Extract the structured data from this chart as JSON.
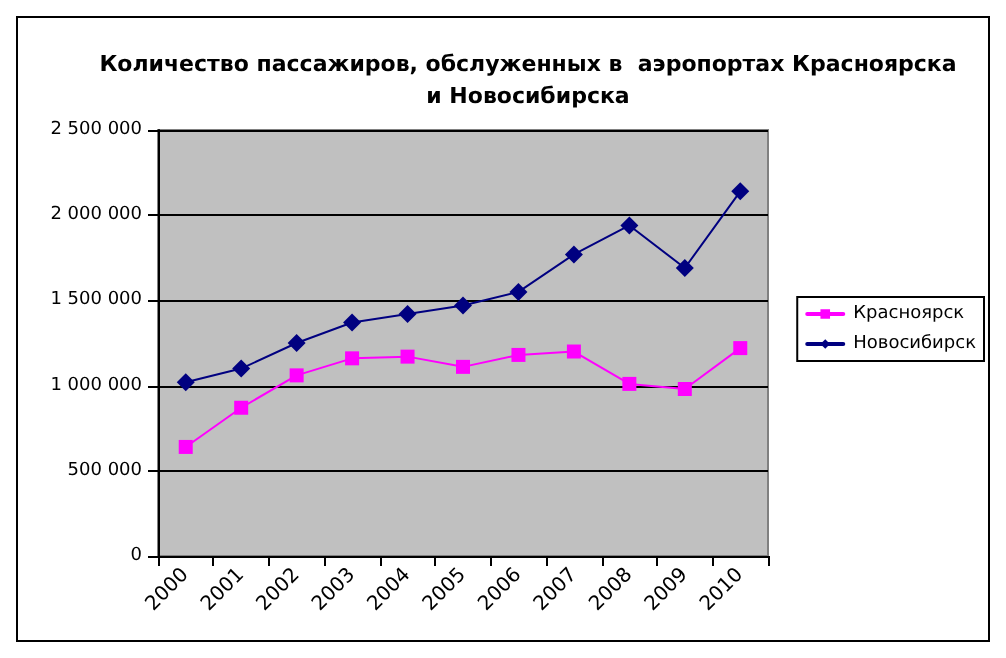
{
  "chart_data": {
    "type": "line",
    "title": "Количество пассажиров, обслуженных в  аэропортах Красноярска\nи Новосибирска",
    "categories": [
      "2000",
      "2001",
      "2002",
      "2003",
      "2004",
      "2005",
      "2006",
      "2007",
      "2008",
      "2009",
      "2010"
    ],
    "series": [
      {
        "name": "Красноярск",
        "color": "#ff00ff",
        "marker": "square",
        "values": [
          640000,
          870000,
          1060000,
          1160000,
          1170000,
          1110000,
          1180000,
          1200000,
          1010000,
          980000,
          1220000
        ]
      },
      {
        "name": "Новосибирск",
        "color": "#000080",
        "marker": "diamond",
        "values": [
          1020000,
          1100000,
          1250000,
          1370000,
          1420000,
          1470000,
          1550000,
          1770000,
          1940000,
          1690000,
          2140000
        ]
      }
    ],
    "ylim": [
      0,
      2500000
    ],
    "yticks": [
      {
        "value": 0,
        "label": "0"
      },
      {
        "value": 500000,
        "label": "500 000"
      },
      {
        "value": 1000000,
        "label": "1 000 000"
      },
      {
        "value": 1500000,
        "label": "1 500 000"
      },
      {
        "value": 2000000,
        "label": "2 000 000"
      },
      {
        "value": 2500000,
        "label": "2 500 000"
      }
    ],
    "grid": "y",
    "legend": "right",
    "line_style": "solid"
  }
}
